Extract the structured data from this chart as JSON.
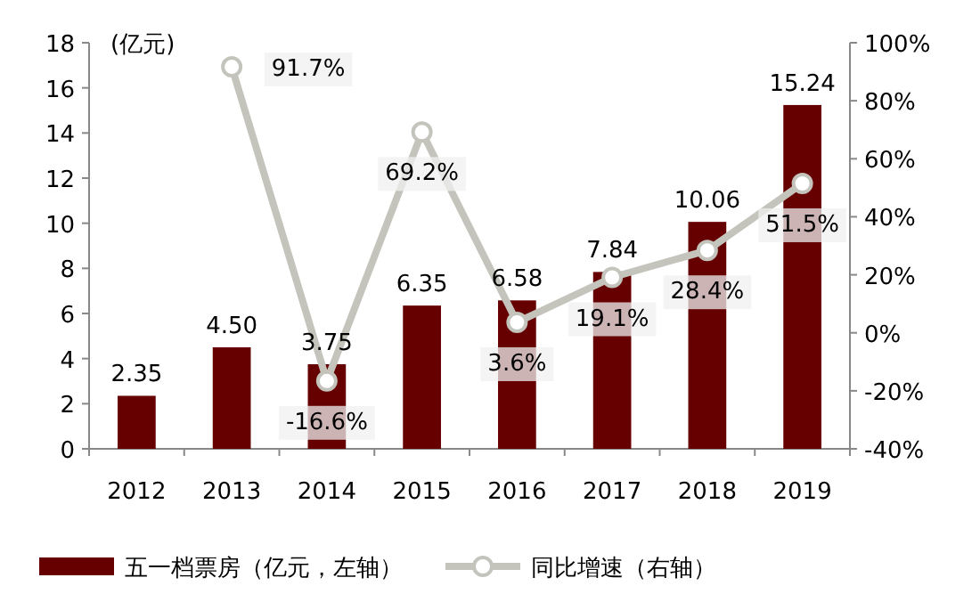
{
  "chart_data": {
    "type": "bar",
    "ylabel": "(亿元)",
    "categories": [
      "2012",
      "2013",
      "2014",
      "2015",
      "2016",
      "2017",
      "2018",
      "2019"
    ],
    "series": [
      {
        "name": "五一档票房（亿元，左轴）",
        "color": "#660000",
        "values": [
          2.35,
          4.5,
          3.75,
          6.35,
          6.58,
          7.84,
          10.06,
          15.24
        ],
        "value_labels": [
          "2.35",
          "4.50",
          "3.75",
          "6.35",
          "6.58",
          "7.84",
          "10.06",
          "15.24"
        ]
      },
      {
        "name": "同比增速（右轴）",
        "type": "line",
        "axis": "y2",
        "color": "#c4c4bc",
        "marker": "circle",
        "values": [
          null,
          91.7,
          -16.6,
          69.2,
          3.6,
          19.1,
          28.4,
          51.5
        ],
        "value_labels": [
          null,
          "91.7%",
          "-16.6%",
          "69.2%",
          "3.6%",
          "19.1%",
          "28.4%",
          "51.5%"
        ]
      }
    ],
    "ylim": [
      0,
      18
    ],
    "yticks": [
      0,
      2,
      4,
      6,
      8,
      10,
      12,
      14,
      16,
      18
    ],
    "y2lim": [
      -40,
      100
    ],
    "y2ticks": [
      {
        "value": -40,
        "label": "-40%"
      },
      {
        "value": -20,
        "label": "-20%"
      },
      {
        "value": 0,
        "label": "0%"
      },
      {
        "value": 20,
        "label": "20%"
      },
      {
        "value": 40,
        "label": "40%"
      },
      {
        "value": 60,
        "label": "60%"
      },
      {
        "value": 80,
        "label": "80%"
      },
      {
        "value": 100,
        "label": "100%"
      }
    ],
    "grid": false,
    "legend": "bottom"
  }
}
